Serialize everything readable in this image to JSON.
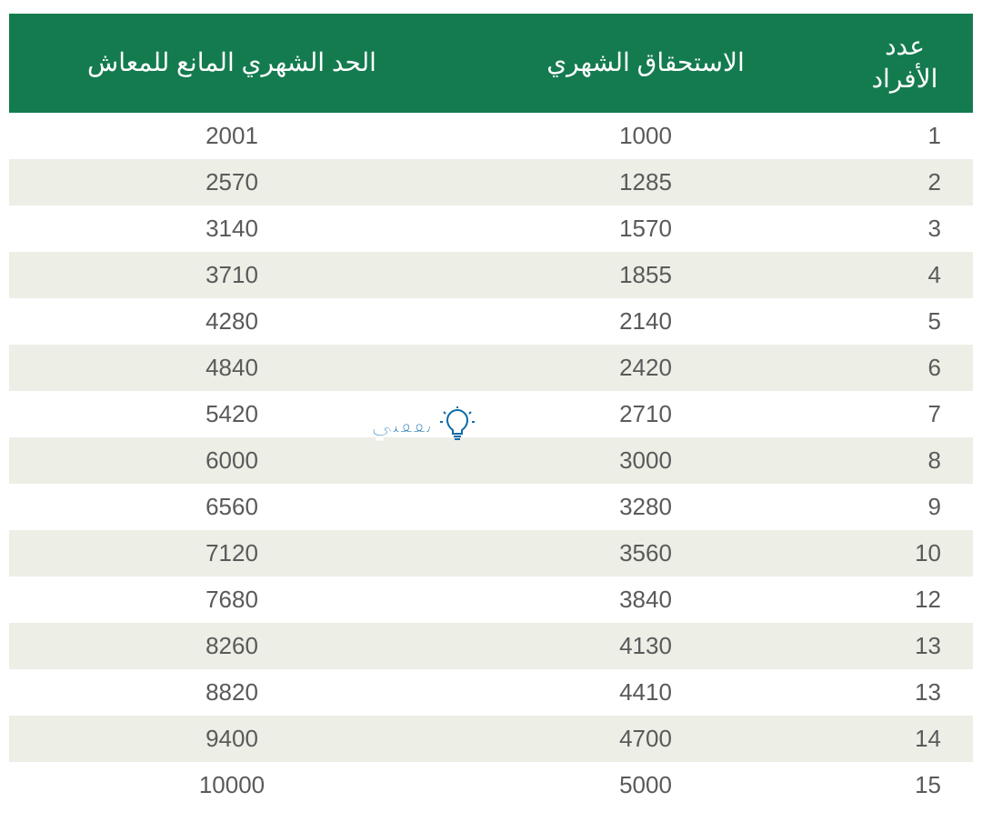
{
  "table": {
    "header_bg_color": "#147b4f",
    "header_text_color": "#ffffff",
    "row_odd_bg": "#ffffff",
    "row_even_bg": "#edeee6",
    "cell_text_color": "#5a5a5a",
    "header_fontsize": 28,
    "cell_fontsize": 26,
    "columns": {
      "count": "عدد الأفراد",
      "entitlement": "الاستحقاق الشهري",
      "limit": "الحد الشهري المانع للمعاش"
    },
    "rows": [
      {
        "count": "1",
        "entitlement": "1000",
        "limit": "2001"
      },
      {
        "count": "2",
        "entitlement": "1285",
        "limit": "2570"
      },
      {
        "count": "3",
        "entitlement": "1570",
        "limit": "3140"
      },
      {
        "count": "4",
        "entitlement": "1855",
        "limit": "3710"
      },
      {
        "count": "5",
        "entitlement": "2140",
        "limit": "4280"
      },
      {
        "count": "6",
        "entitlement": "2420",
        "limit": "4840"
      },
      {
        "count": "7",
        "entitlement": "2710",
        "limit": "5420"
      },
      {
        "count": "8",
        "entitlement": "3000",
        "limit": "6000"
      },
      {
        "count": "9",
        "entitlement": "3280",
        "limit": "6560"
      },
      {
        "count": "10",
        "entitlement": "3560",
        "limit": "7120"
      },
      {
        "count": "12",
        "entitlement": "3840",
        "limit": "7680"
      },
      {
        "count": "13",
        "entitlement": "4130",
        "limit": "8260"
      },
      {
        "count": "13",
        "entitlement": "4410",
        "limit": "8820"
      },
      {
        "count": "14",
        "entitlement": "4700",
        "limit": "9400"
      },
      {
        "count": "15",
        "entitlement": "5000",
        "limit": "10000"
      }
    ]
  },
  "watermark": {
    "text": "ثقفني",
    "text_color": "#0b6ba8",
    "icon_color": "#0b6ba8"
  }
}
